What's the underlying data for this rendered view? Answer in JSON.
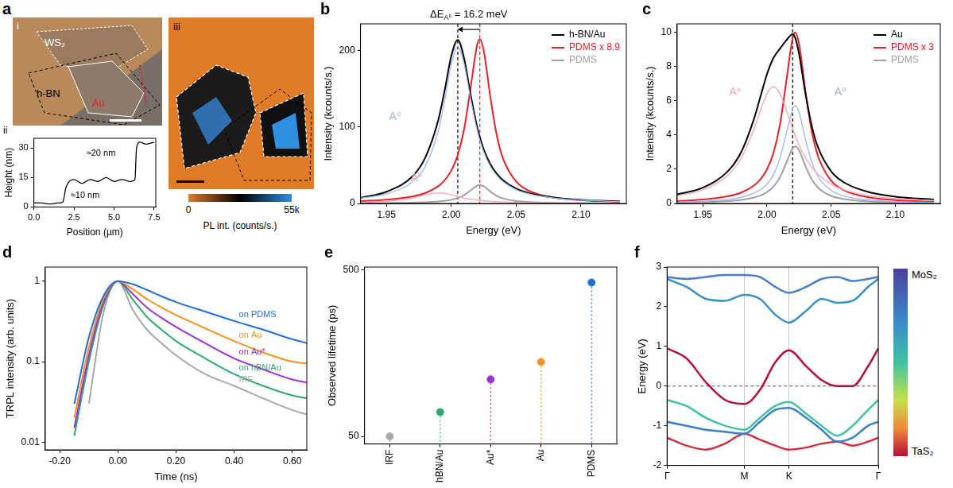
{
  "images": {
    "panel": "a",
    "optical": {
      "label": "i",
      "texts": {
        "flake": "WS₂",
        "spacer": "h-BN",
        "substrate": "Au"
      }
    },
    "pl_map": {
      "label": "iii",
      "colorbar": {
        "range": [
          0,
          55000
        ],
        "ticks": [
          0,
          {
            "value": 55000,
            "label": "55k"
          }
        ],
        "title": "PL int. (counts/s.)"
      }
    }
  },
  "chart_data": [
    {
      "panel": "ii",
      "type": "line",
      "x_label": "Position (µm)",
      "y_label": "Height (nm)",
      "grid": false,
      "x": [
        0,
        0.5,
        1,
        1.5,
        1.8,
        2.0,
        2.2,
        2.5,
        3,
        3.5,
        4,
        4.5,
        5,
        5.5,
        6,
        6.3,
        6.4,
        6.6,
        7,
        7.5
      ],
      "series": [
        {
          "color": "#000000",
          "values": [
            2,
            2,
            1.5,
            2,
            2.5,
            10,
            13,
            14,
            12,
            14,
            13,
            15,
            13,
            14,
            13,
            14,
            30,
            33,
            32,
            33
          ]
        }
      ],
      "xlim": [
        0,
        7.6
      ],
      "xticks": [
        {
          "value": 0,
          "label": "0.0"
        },
        {
          "value": 2.5,
          "label": "2.5"
        },
        {
          "value": 5,
          "label": "5.0"
        },
        {
          "value": 7.5,
          "label": "7.5"
        }
      ],
      "ylim": [
        0,
        35
      ],
      "yticks": [
        0,
        15,
        30
      ],
      "annotations": [
        "≈20 nm",
        "≈10 nm"
      ]
    },
    {
      "panel": "b",
      "type": "line",
      "x_label": "Energy (eV)",
      "y_label": "Intensity (kcounts/s.)",
      "grid": false,
      "legend": "upper right",
      "annotation": {
        "text": "ΔE",
        "subscript": "A⁰",
        "rest": "= 16.2 meV"
      },
      "vlines": [
        {
          "value": 2.005,
          "color": "#000000"
        },
        {
          "value": 2.022,
          "color": "#e8202a"
        }
      ],
      "x": [
        1.93,
        1.95,
        1.97,
        1.98,
        1.99,
        1.995,
        2.0,
        2.005,
        2.01,
        2.015,
        2.02,
        2.022,
        2.025,
        2.03,
        2.035,
        2.04,
        2.05,
        2.06,
        2.08,
        2.1,
        2.13
      ],
      "series": [
        {
          "name": "h-BN/Au",
          "color": "#000000",
          "values": [
            7.3,
            15.3,
            35.3,
            60.1,
            109.4,
            149.0,
            193.0,
            214.0,
            188.8,
            141.3,
            99.7,
            86.7,
            70.8,
            51.7,
            39.0,
            30.2,
            19.5,
            13.6,
            7.6,
            4.8,
            2.8
          ]
        },
        {
          "name": "PDMS x 8.9",
          "color": "#e8202a",
          "values": [
            3.0,
            4.9,
            9.2,
            13.8,
            22.7,
            30.6,
            43,
            63.4,
            98.2,
            153,
            208,
            215,
            200,
            140.6,
            89.7,
            58.4,
            28.7,
            16.6,
            7.5,
            4.2,
            2.2
          ]
        },
        {
          "name": "PDMS",
          "color": "#a0a0a0",
          "values": [
            0.3,
            0.6,
            1.0,
            1.6,
            2.6,
            3.4,
            4.8,
            7.1,
            11.0,
            17.2,
            23.4,
            24.2,
            22.5,
            15.8,
            10.1,
            6.6,
            3.2,
            1.9,
            0.8,
            0.5,
            0.2
          ]
        }
      ],
      "fits": [
        {
          "name": "A⁰",
          "color": "#9bb8ec",
          "values": [
            6.9,
            12.5,
            28.3,
            48.9,
            95.4,
            135.8,
            181.8,
            205,
            181.8,
            135.8,
            95.4,
            82.8,
            67.4,
            48.9,
            36.7,
            28.3,
            18.1,
            12.5,
            6.9,
            4.4,
            2.5
          ]
        },
        {
          "name": "A*",
          "color": "#f4a6b8",
          "values": [
            1.4,
            2.8,
            7,
            11.2,
            14,
            13.2,
            11.2,
            9.0,
            7,
            5.5,
            4.3,
            3.9,
            3.4,
            2.8,
            2.3,
            1.9,
            1.4,
            1.1,
            0.7,
            0.4,
            0.3
          ]
        }
      ],
      "xlim": [
        1.93,
        2.135
      ],
      "xticks": [
        1.95,
        {
          "value": 2.0,
          "label": "2.00"
        },
        2.05,
        {
          "value": 2.1,
          "label": "2.10"
        }
      ],
      "ylim": [
        0,
        235
      ],
      "yticks": [
        0,
        100,
        200
      ]
    },
    {
      "panel": "c",
      "type": "line",
      "x_label": "Energy (eV)",
      "y_label": "Intensity (kcounts/s.)",
      "grid": false,
      "legend": "upper right",
      "vlines": [
        {
          "value": 2.02,
          "color": "#000000"
        }
      ],
      "x": [
        1.93,
        1.95,
        1.97,
        1.98,
        1.99,
        1.995,
        2.0,
        2.005,
        2.01,
        2.015,
        2.02,
        2.022,
        2.025,
        2.03,
        2.035,
        2.04,
        2.05,
        2.06,
        2.08,
        2.1,
        2.13
      ],
      "series": [
        {
          "name": "Au",
          "color": "#000000",
          "values": [
            0.53,
            0.92,
            1.92,
            3.02,
            4.98,
            6.27,
            7.56,
            8.5,
            9.04,
            9.53,
            9.9,
            9.68,
            8.73,
            6.4,
            4.49,
            3.23,
            1.88,
            1.23,
            0.65,
            0.4,
            0.23
          ]
        },
        {
          "name": "PDMS x 3",
          "color": "#e8202a",
          "values": [
            0.14,
            0.23,
            0.43,
            0.64,
            1.06,
            1.42,
            2.0,
            2.95,
            4.57,
            7.12,
            9.67,
            10.0,
            9.3,
            6.54,
            4.17,
            2.72,
            1.33,
            0.77,
            0.35,
            0.2,
            0.1
          ]
        },
        {
          "name": "PDMS",
          "color": "#a0a0a0",
          "values": [
            0.05,
            0.08,
            0.14,
            0.21,
            0.35,
            0.47,
            0.67,
            0.98,
            1.52,
            2.37,
            3.22,
            3.33,
            3.1,
            2.18,
            1.39,
            0.91,
            0.44,
            0.26,
            0.12,
            0.07,
            0.03
          ]
        }
      ],
      "fits": [
        {
          "name": "A*",
          "color": "#f4a6b8",
          "values": [
            0.45,
            0.79,
            1.68,
            2.66,
            4.37,
            5.46,
            6.42,
            6.82,
            6.42,
            5.46,
            4.37,
            3.96,
            3.41,
            2.66,
            2.1,
            1.68,
            1.12,
            0.79,
            0.45,
            0.29,
            0.17
          ]
        },
        {
          "name": "A⁰",
          "color": "#9bb8ec",
          "values": [
            0.08,
            0.13,
            0.24,
            0.36,
            0.61,
            0.81,
            1.14,
            1.68,
            2.62,
            4.07,
            5.53,
            5.72,
            5.32,
            3.74,
            2.39,
            1.55,
            0.76,
            0.44,
            0.2,
            0.11,
            0.06
          ]
        }
      ],
      "xlim": [
        1.93,
        2.135
      ],
      "xticks": [
        1.95,
        {
          "value": 2.0,
          "label": "2.00"
        },
        2.05,
        {
          "value": 2.1,
          "label": "2.10"
        }
      ],
      "ylim": [
        0,
        10.5
      ],
      "yticks": [
        0,
        2,
        4,
        6,
        8,
        10
      ]
    },
    {
      "panel": "d",
      "type": "line",
      "log": "y",
      "x_label": "Time (ns)",
      "y_label": "TRPL intensity (arb. units)",
      "grid": false,
      "legend": "inline",
      "x": [
        -0.2,
        -0.15,
        -0.1,
        -0.05,
        0,
        0.05,
        0.1,
        0.15,
        0.2,
        0.3,
        0.4,
        0.5,
        0.6,
        0.65
      ],
      "series": [
        {
          "name": "on PDMS",
          "color": "#1f6fd8",
          "values": [
            null,
            0.03,
            0.2,
            0.65,
            1,
            0.92,
            0.78,
            0.65,
            0.55,
            0.42,
            0.32,
            0.25,
            0.19,
            0.17
          ]
        },
        {
          "name": "on Au",
          "color": "#f5921e",
          "values": [
            null,
            0.02,
            0.15,
            0.6,
            1,
            0.8,
            0.6,
            0.47,
            0.38,
            0.26,
            0.18,
            0.13,
            0.1,
            0.095
          ]
        },
        {
          "name": "on Au*",
          "color": "#9b30d9",
          "values": [
            null,
            0.015,
            0.12,
            0.55,
            1,
            0.7,
            0.47,
            0.35,
            0.27,
            0.17,
            0.11,
            0.08,
            0.06,
            0.055
          ]
        },
        {
          "name": "on hBN/Au",
          "color": "#2eaa6e",
          "values": [
            null,
            0.012,
            0.1,
            0.5,
            1,
            0.6,
            0.36,
            0.25,
            0.18,
            0.11,
            0.07,
            0.05,
            0.038,
            0.035
          ]
        },
        {
          "name": "IRF",
          "color": "#a8a8a8",
          "values": [
            null,
            null,
            0.03,
            0.4,
            1,
            0.45,
            0.25,
            0.17,
            0.12,
            0.07,
            0.05,
            0.035,
            0.025,
            0.022
          ]
        }
      ],
      "xlim": [
        -0.25,
        0.65
      ],
      "xticks": [
        {
          "value": -0.2,
          "label": "-0.20"
        },
        {
          "value": 0,
          "label": "0.00"
        },
        {
          "value": 0.2,
          "label": "0.20"
        },
        {
          "value": 0.4,
          "label": "0.40"
        },
        {
          "value": 0.6,
          "label": "0.60"
        }
      ],
      "ylim": [
        0.008,
        1.5
      ],
      "yticks": [
        0.01,
        0.1,
        1
      ]
    },
    {
      "panel": "e",
      "type": "scatter",
      "log": "y",
      "y_label": "Observed lifetime (ps)",
      "grid": false,
      "categories": [
        "IRF",
        "hBN/Au",
        "Au*",
        "Au",
        "PDMS"
      ],
      "values": [
        50,
        70,
        110,
        140,
        420
      ],
      "colors": [
        "#a8a8a8",
        "#2eaa6e",
        "#9b30d9",
        "#f5921e",
        "#1f6fd8"
      ],
      "ylim": [
        45,
        520
      ],
      "yticks": [
        50,
        500
      ]
    },
    {
      "panel": "f",
      "type": "line",
      "y_label": "Energy (eV)",
      "grid": "x",
      "hlines": [
        0
      ],
      "x": [
        0,
        0.25,
        0.5,
        0.75,
        1,
        1.2,
        1.4,
        1.577,
        1.8,
        2.0,
        2.2,
        2.4,
        2.6,
        2.732
      ],
      "series": [
        {
          "color": "#4a7fc8",
          "values": [
            2.75,
            2.7,
            2.75,
            2.8,
            2.8,
            2.75,
            2.5,
            2.35,
            2.5,
            2.7,
            2.75,
            2.65,
            2.7,
            2.75
          ]
        },
        {
          "color": "#3a8fc8",
          "values": [
            2.7,
            2.5,
            2.2,
            2.15,
            2.3,
            2.2,
            1.8,
            1.6,
            1.9,
            2.2,
            2.1,
            2.15,
            2.5,
            2.7
          ]
        },
        {
          "color": "#b2103a",
          "values": [
            0.95,
            0.7,
            0.1,
            -0.35,
            -0.45,
            -0.1,
            0.6,
            0.9,
            0.5,
            0.15,
            0.0,
            0.0,
            0.5,
            0.95
          ]
        },
        {
          "color": "#3fc2a0",
          "values": [
            -0.35,
            -0.5,
            -0.8,
            -1.0,
            -1.1,
            -0.8,
            -0.5,
            -0.4,
            -0.7,
            -1.0,
            -1.25,
            -1.0,
            -0.6,
            -0.35
          ]
        },
        {
          "color": "#3a7fc4",
          "values": [
            -0.9,
            -1.0,
            -1.1,
            -1.15,
            -1.2,
            -0.9,
            -0.6,
            -0.55,
            -0.8,
            -1.1,
            -1.4,
            -1.3,
            -1.0,
            -0.9
          ]
        },
        {
          "color": "#d0303c",
          "values": [
            -1.3,
            -1.5,
            -1.6,
            -1.45,
            -1.2,
            -1.35,
            -1.5,
            -1.6,
            -1.55,
            -1.45,
            -1.4,
            -1.5,
            -1.4,
            -1.3
          ]
        }
      ],
      "xlim": [
        0,
        2.732
      ],
      "xticks": [
        {
          "value": 0,
          "label": "Γ"
        },
        {
          "value": 1,
          "label": "M"
        },
        {
          "value": 1.577,
          "label": "K"
        },
        {
          "value": 2.732,
          "label": "Γ"
        }
      ],
      "ylim": [
        -2,
        3
      ],
      "yticks": [
        -2,
        -1,
        0,
        1,
        2,
        3
      ],
      "colorbar": {
        "top": "MoS₂",
        "bottom": "TaS₂"
      }
    }
  ]
}
